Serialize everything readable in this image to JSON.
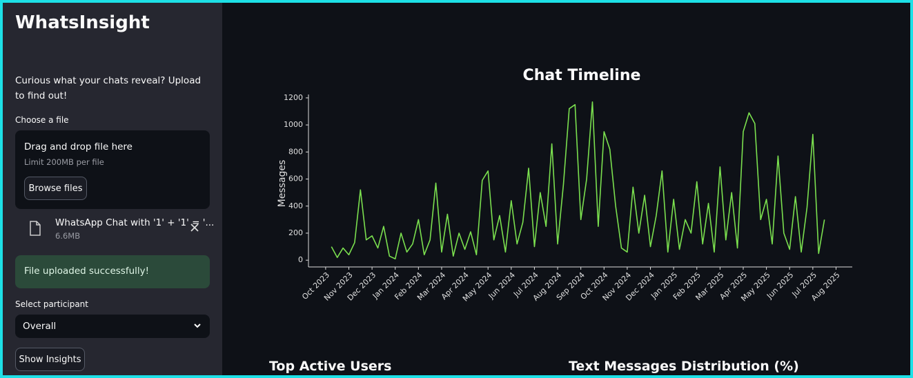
{
  "sidebar": {
    "title": "WhatsInsight",
    "description": "Curious what your chats reveal? Upload to find out!",
    "file_label": "Choose a file",
    "drop_text": "Drag and drop file here",
    "limit_text": "Limit 200MB per file",
    "browse_button": "Browse files",
    "file_name": "WhatsApp Chat with '1' + '1' = '...",
    "file_size": "6.6MB",
    "success": "File uploaded successfully!",
    "select_label": "Select participant",
    "select_value": "Overall",
    "insights_button": "Show Insights"
  },
  "main": {
    "headings": [
      "Top Active Users",
      "Text Messages Distribution (%)"
    ]
  },
  "chart_data": {
    "type": "line",
    "title": "Chat Timeline",
    "ylabel": "Messages",
    "color": "#7be04f",
    "x": [
      0.25,
      0.5,
      0.75,
      1,
      1.25,
      1.5,
      1.75,
      2,
      2.25,
      2.5,
      2.75,
      3,
      3.25,
      3.5,
      3.75,
      4,
      4.25,
      4.5,
      4.75,
      5,
      5.25,
      5.5,
      5.75,
      6,
      6.25,
      6.5,
      6.75,
      7,
      7.25,
      7.5,
      7.75,
      8,
      8.25,
      8.5,
      8.75,
      9,
      9.25,
      9.5,
      9.75,
      10,
      10.25,
      10.5,
      10.75,
      11,
      11.25,
      11.5,
      11.75,
      12,
      12.25,
      12.5,
      12.75,
      13,
      13.25,
      13.5,
      13.75,
      14,
      14.25,
      14.5,
      14.75,
      15,
      15.25,
      15.5,
      15.75,
      16,
      16.25,
      16.5,
      16.75,
      17,
      17.25,
      17.5,
      17.75,
      18,
      18.25,
      18.5,
      18.75,
      19,
      19.25,
      19.5,
      19.75,
      20,
      20.25,
      20.5,
      20.75,
      21,
      21.25,
      21.5
    ],
    "values": [
      100,
      20,
      90,
      40,
      130,
      520,
      150,
      180,
      90,
      250,
      30,
      10,
      200,
      60,
      120,
      300,
      40,
      150,
      570,
      60,
      340,
      30,
      200,
      80,
      210,
      40,
      590,
      660,
      150,
      330,
      60,
      440,
      120,
      280,
      680,
      100,
      500,
      250,
      860,
      120,
      560,
      1120,
      1150,
      300,
      600,
      1170,
      250,
      950,
      820,
      400,
      90,
      60,
      540,
      200,
      480,
      100,
      330,
      660,
      60,
      450,
      80,
      300,
      200,
      580,
      120,
      420,
      60,
      690,
      150,
      500,
      90,
      950,
      1090,
      1010,
      300,
      450,
      120,
      770,
      200,
      80,
      470,
      60,
      390,
      930,
      50,
      300
    ],
    "xlim": [
      -0.74,
      22.7
    ],
    "xticks": [
      {
        "value": 0,
        "label": "Oct 2023"
      },
      {
        "value": 1,
        "label": "Nov 2023"
      },
      {
        "value": 2,
        "label": "Dec 2023"
      },
      {
        "value": 3,
        "label": "Jan 2024"
      },
      {
        "value": 4,
        "label": "Feb 2024"
      },
      {
        "value": 5,
        "label": "Mar 2024"
      },
      {
        "value": 6,
        "label": "Apr 2024"
      },
      {
        "value": 7,
        "label": "May 2024"
      },
      {
        "value": 8,
        "label": "Jun 2024"
      },
      {
        "value": 9,
        "label": "Jul 2024"
      },
      {
        "value": 10,
        "label": "Aug 2024"
      },
      {
        "value": 11,
        "label": "Sep 2024"
      },
      {
        "value": 12,
        "label": "Oct 2024"
      },
      {
        "value": 13,
        "label": "Nov 2024"
      },
      {
        "value": 14,
        "label": "Dec 2024"
      },
      {
        "value": 15,
        "label": "Jan 2025"
      },
      {
        "value": 16,
        "label": "Feb 2025"
      },
      {
        "value": 17,
        "label": "Mar 2025"
      },
      {
        "value": 18,
        "label": "Apr 2025"
      },
      {
        "value": 19,
        "label": "May 2025"
      },
      {
        "value": 20,
        "label": "Jun 2025"
      },
      {
        "value": 21,
        "label": "Jul 2025"
      },
      {
        "value": 22,
        "label": "Aug 2025"
      }
    ],
    "ylim": [
      -50,
      1225
    ],
    "yticks": [
      0,
      200,
      400,
      600,
      800,
      1000,
      1200
    ],
    "grid": false
  }
}
